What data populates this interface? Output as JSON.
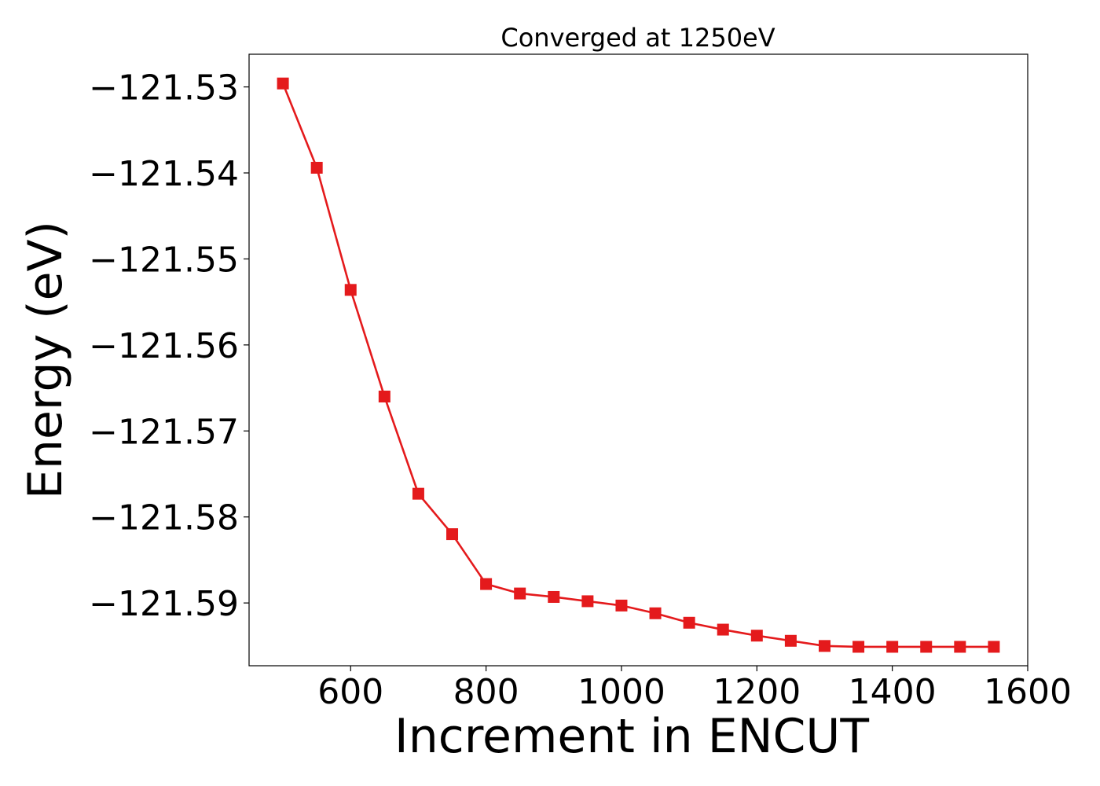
{
  "chart_data": {
    "type": "line",
    "title": "Converged at 1250eV",
    "xlabel": "Increment in ENCUT",
    "ylabel": "Energy (eV)",
    "xlim": [
      450,
      1600
    ],
    "ylim": [
      -121.5973,
      -121.5262
    ],
    "x_ticks": [
      {
        "value": 600,
        "label": "600"
      },
      {
        "value": 800,
        "label": "800"
      },
      {
        "value": 1000,
        "label": "1000"
      },
      {
        "value": 1200,
        "label": "1200"
      },
      {
        "value": 1400,
        "label": "1400"
      },
      {
        "value": 1600,
        "label": "1600"
      }
    ],
    "y_ticks": [
      {
        "value": -121.53,
        "label": "−121.53"
      },
      {
        "value": -121.54,
        "label": "−121.54"
      },
      {
        "value": -121.55,
        "label": "−121.55"
      },
      {
        "value": -121.56,
        "label": "−121.56"
      },
      {
        "value": -121.57,
        "label": "−121.57"
      },
      {
        "value": -121.58,
        "label": "−121.58"
      },
      {
        "value": -121.59,
        "label": "−121.59"
      }
    ],
    "grid": false,
    "series": [
      {
        "color": "#e41a1c",
        "marker": "square",
        "x": [
          500,
          550,
          600,
          650,
          700,
          750,
          800,
          850,
          900,
          950,
          1000,
          1050,
          1100,
          1150,
          1200,
          1250,
          1300,
          1350,
          1400,
          1450,
          1500,
          1550
        ],
        "y": [
          -121.5296,
          -121.5394,
          -121.5536,
          -121.566,
          -121.5773,
          -121.582,
          -121.5878,
          -121.5889,
          -121.5893,
          -121.5898,
          -121.5903,
          -121.5912,
          -121.5923,
          -121.5931,
          -121.5938,
          -121.5944,
          -121.595,
          -121.5951,
          -121.5951,
          -121.5951,
          -121.5951,
          -121.5951
        ]
      }
    ]
  }
}
